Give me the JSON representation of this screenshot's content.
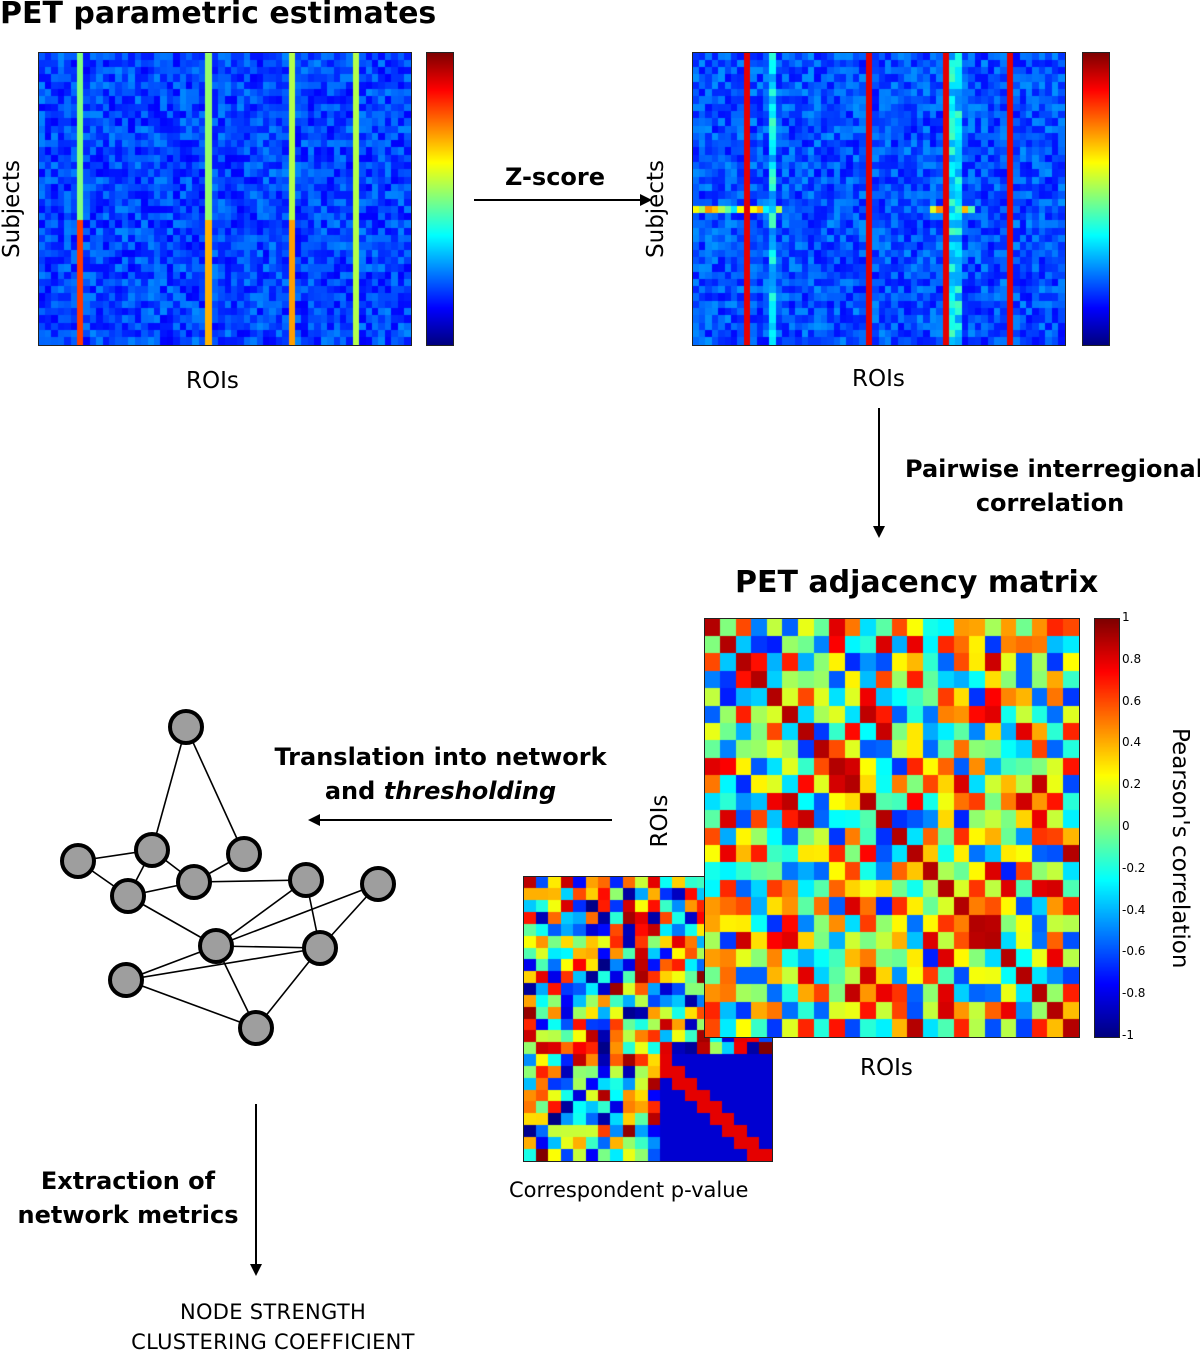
{
  "panel1": {
    "title": "PET parametric estimates",
    "xlabel": "ROIs",
    "ylabel": "Subjects"
  },
  "panel2": {
    "xlabel": "ROIs",
    "ylabel": "Subjects"
  },
  "steps": {
    "zscore": "Z-score",
    "correlation_line1": "Pairwise interregional",
    "correlation_line2": "correlation",
    "translation_line1": "Translation into network",
    "translation_line2_prefix": "and ",
    "translation_line2_italic": "thresholding",
    "extraction_line1": "Extraction of",
    "extraction_line2": "network metrics"
  },
  "adjacency": {
    "title": "PET adjacency matrix",
    "xlabel": "ROIs",
    "ylabel": "ROIs",
    "colorbar_label": "Pearson's correlation",
    "colorbar_ticks": [
      "1",
      "0.8",
      "0.6",
      "0.4",
      "0.2",
      "0",
      "-0.2",
      "-0.4",
      "-0.6",
      "-0.8",
      "-1"
    ]
  },
  "pvalue": {
    "caption": "Correspondent p-value"
  },
  "metrics": {
    "line1": "NODE STRENGTH",
    "line2": "CLUSTERING COEFFICIENT"
  },
  "colors": {
    "colormap": "jet",
    "arrow": "#000000",
    "node_fill": "#9e9e9e",
    "node_stroke": "#000000"
  }
}
